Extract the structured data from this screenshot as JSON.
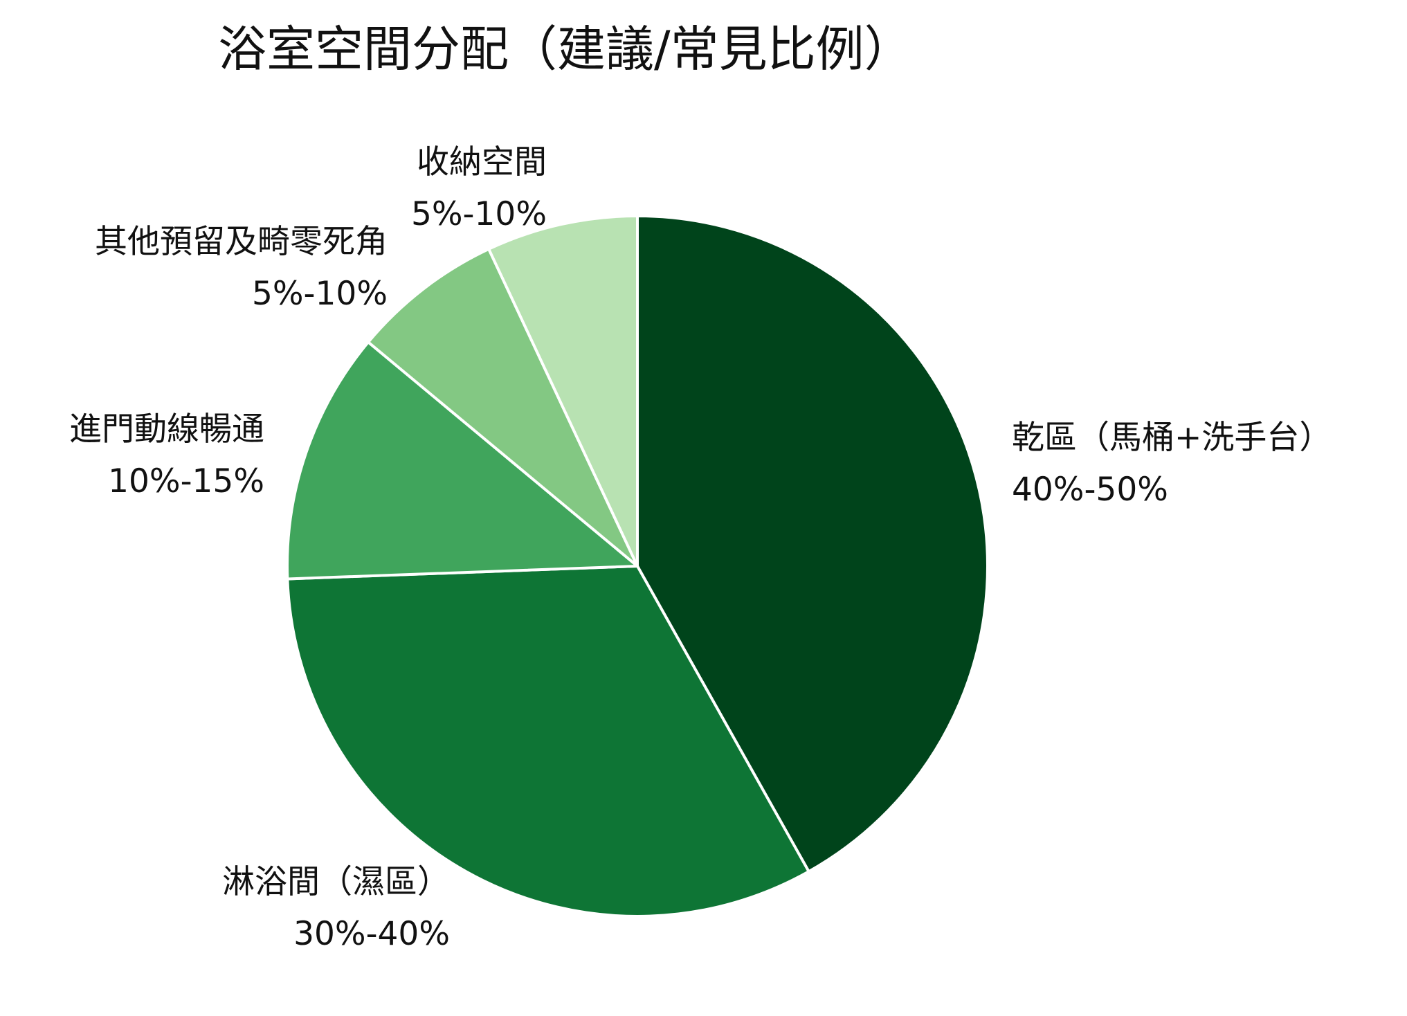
{
  "chart_data": {
    "type": "pie",
    "title": "浴室空間分配（建議/常見比例）",
    "start_angle_deg": 90,
    "direction": "clockwise",
    "slices": [
      {
        "label": "乾區（馬桶+洗手台）",
        "range_text": "40%-50%",
        "value": 45,
        "color": "#00441b"
      },
      {
        "label": "淋浴間（濕區）",
        "range_text": "30%-40%",
        "value": 35,
        "color": "#0e7535"
      },
      {
        "label": "進門動線暢通",
        "range_text": "10%-15%",
        "value": 12.5,
        "color": "#40a55c"
      },
      {
        "label": "其他預留及畸零死角",
        "range_text": "5%-10%",
        "value": 7.5,
        "color": "#83c883"
      },
      {
        "label": "收納空間",
        "range_text": "5%-10%",
        "value": 7.5,
        "color": "#b8e2b2"
      }
    ],
    "edge_color": "#ffffff"
  }
}
